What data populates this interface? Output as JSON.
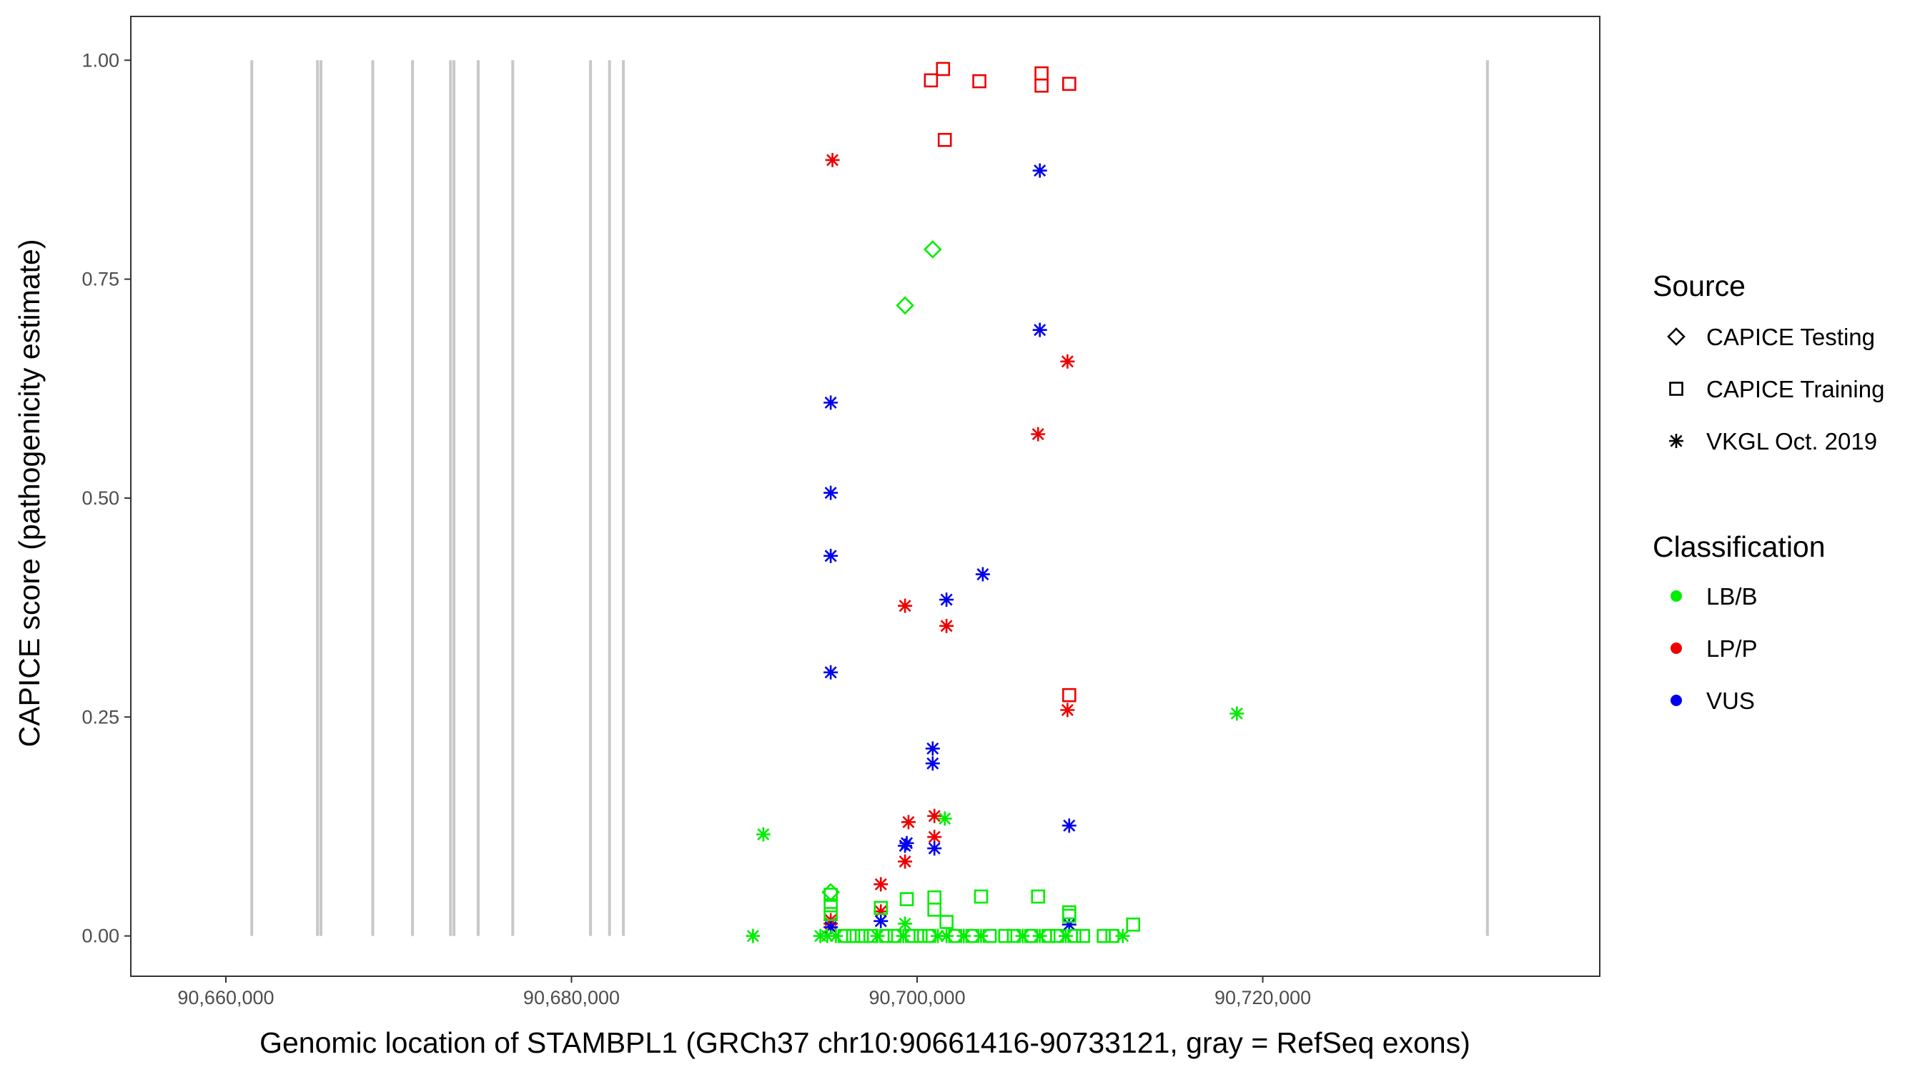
{
  "chart_data": {
    "type": "scatter",
    "xlabel": "Genomic location of STAMBPL1 (GRCh37 chr10:90661416-90733121, gray = RefSeq exons)",
    "ylabel": "CAPICE score (pathogenicity estimate)",
    "xlim": [
      90654500,
      90739500
    ],
    "ylim": [
      -0.046,
      1.05
    ],
    "x_ticks": [
      90660000,
      90680000,
      90700000,
      90720000
    ],
    "x_tick_labels": [
      "90,660,000",
      "90,680,000",
      "90,700,000",
      "90,720,000"
    ],
    "y_ticks": [
      0,
      0.25,
      0.5,
      0.75,
      1.0
    ],
    "y_tick_labels": [
      "0.00",
      "0.25",
      "0.50",
      "0.75",
      "1.00"
    ],
    "grid": false,
    "exons": [
      90661500,
      90665300,
      90665500,
      90668500,
      90670800,
      90673000,
      90673200,
      90674600,
      90676600,
      90681100,
      90682200,
      90683000,
      90733000
    ],
    "colors": {
      "LB/B": "#00ee00",
      "LP/P": "#ee0000",
      "VUS": "#0000ee",
      "exon": "#c8c8c8"
    },
    "legend": {
      "placement": "right",
      "source_title": "Source",
      "source_items": [
        {
          "label": "CAPICE Testing",
          "shape": "diamond"
        },
        {
          "label": "CAPICE Training",
          "shape": "square"
        },
        {
          "label": "VKGL Oct. 2019",
          "shape": "asterisk"
        }
      ],
      "class_title": "Classification",
      "class_items": [
        {
          "label": "LB/B",
          "color": "#00ee00"
        },
        {
          "label": "LP/P",
          "color": "#ee0000"
        },
        {
          "label": "VUS",
          "color": "#0000ee"
        }
      ]
    },
    "points": [
      {
        "x": 90701500,
        "y": 0.99,
        "source": "CAPICE Training",
        "class": "LP/P"
      },
      {
        "x": 90700800,
        "y": 0.977,
        "source": "CAPICE Training",
        "class": "LP/P"
      },
      {
        "x": 90703600,
        "y": 0.976,
        "source": "CAPICE Training",
        "class": "LP/P"
      },
      {
        "x": 90707200,
        "y": 0.985,
        "source": "CAPICE Training",
        "class": "LP/P"
      },
      {
        "x": 90707200,
        "y": 0.971,
        "source": "CAPICE Training",
        "class": "LP/P"
      },
      {
        "x": 90708800,
        "y": 0.973,
        "source": "CAPICE Training",
        "class": "LP/P"
      },
      {
        "x": 90701600,
        "y": 0.909,
        "source": "CAPICE Training",
        "class": "LP/P"
      },
      {
        "x": 90708800,
        "y": 0.275,
        "source": "CAPICE Training",
        "class": "LP/P"
      },
      {
        "x": 90695100,
        "y": 0.886,
        "source": "VKGL Oct. 2019",
        "class": "LP/P"
      },
      {
        "x": 90707100,
        "y": 0.874,
        "source": "VKGL Oct. 2019",
        "class": "VUS"
      },
      {
        "x": 90700900,
        "y": 0.784,
        "source": "CAPICE Testing",
        "class": "LB/B"
      },
      {
        "x": 90699300,
        "y": 0.72,
        "source": "CAPICE Testing",
        "class": "LB/B"
      },
      {
        "x": 90707100,
        "y": 0.692,
        "source": "VKGL Oct. 2019",
        "class": "VUS"
      },
      {
        "x": 90708700,
        "y": 0.656,
        "source": "VKGL Oct. 2019",
        "class": "LP/P"
      },
      {
        "x": 90695000,
        "y": 0.609,
        "source": "VKGL Oct. 2019",
        "class": "VUS"
      },
      {
        "x": 90707000,
        "y": 0.573,
        "source": "VKGL Oct. 2019",
        "class": "LP/P"
      },
      {
        "x": 90695000,
        "y": 0.506,
        "source": "VKGL Oct. 2019",
        "class": "VUS"
      },
      {
        "x": 90695000,
        "y": 0.434,
        "source": "VKGL Oct. 2019",
        "class": "VUS"
      },
      {
        "x": 90703800,
        "y": 0.413,
        "source": "VKGL Oct. 2019",
        "class": "VUS"
      },
      {
        "x": 90701700,
        "y": 0.384,
        "source": "VKGL Oct. 2019",
        "class": "VUS"
      },
      {
        "x": 90699300,
        "y": 0.377,
        "source": "VKGL Oct. 2019",
        "class": "LP/P"
      },
      {
        "x": 90701700,
        "y": 0.354,
        "source": "VKGL Oct. 2019",
        "class": "LP/P"
      },
      {
        "x": 90695000,
        "y": 0.301,
        "source": "VKGL Oct. 2019",
        "class": "VUS"
      },
      {
        "x": 90708700,
        "y": 0.258,
        "source": "VKGL Oct. 2019",
        "class": "LP/P"
      },
      {
        "x": 90718500,
        "y": 0.254,
        "source": "VKGL Oct. 2019",
        "class": "LB/B"
      },
      {
        "x": 90700900,
        "y": 0.214,
        "source": "VKGL Oct. 2019",
        "class": "VUS"
      },
      {
        "x": 90700900,
        "y": 0.197,
        "source": "VKGL Oct. 2019",
        "class": "VUS"
      },
      {
        "x": 90701000,
        "y": 0.137,
        "source": "VKGL Oct. 2019",
        "class": "LP/P"
      },
      {
        "x": 90701600,
        "y": 0.134,
        "source": "VKGL Oct. 2019",
        "class": "LB/B"
      },
      {
        "x": 90699500,
        "y": 0.13,
        "source": "VKGL Oct. 2019",
        "class": "LP/P"
      },
      {
        "x": 90708800,
        "y": 0.126,
        "source": "VKGL Oct. 2019",
        "class": "VUS"
      },
      {
        "x": 90691100,
        "y": 0.116,
        "source": "VKGL Oct. 2019",
        "class": "LB/B"
      },
      {
        "x": 90701000,
        "y": 0.113,
        "source": "VKGL Oct. 2019",
        "class": "LP/P"
      },
      {
        "x": 90699400,
        "y": 0.106,
        "source": "VKGL Oct. 2019",
        "class": "VUS"
      },
      {
        "x": 90699300,
        "y": 0.103,
        "source": "VKGL Oct. 2019",
        "class": "VUS"
      },
      {
        "x": 90701000,
        "y": 0.1,
        "source": "VKGL Oct. 2019",
        "class": "VUS"
      },
      {
        "x": 90699300,
        "y": 0.085,
        "source": "VKGL Oct. 2019",
        "class": "LP/P"
      },
      {
        "x": 90697900,
        "y": 0.059,
        "source": "VKGL Oct. 2019",
        "class": "LP/P"
      },
      {
        "x": 90697900,
        "y": 0.028,
        "source": "VKGL Oct. 2019",
        "class": "LP/P"
      },
      {
        "x": 90697900,
        "y": 0.017,
        "source": "VKGL Oct. 2019",
        "class": "VUS"
      },
      {
        "x": 90695000,
        "y": 0.018,
        "source": "VKGL Oct. 2019",
        "class": "LP/P"
      },
      {
        "x": 90695000,
        "y": 0.014,
        "source": "VKGL Oct. 2019",
        "class": "LP/P"
      },
      {
        "x": 90695000,
        "y": 0.01,
        "source": "VKGL Oct. 2019",
        "class": "VUS"
      },
      {
        "x": 90708800,
        "y": 0.013,
        "source": "VKGL Oct. 2019",
        "class": "VUS"
      },
      {
        "x": 90699300,
        "y": 0.014,
        "source": "VKGL Oct. 2019",
        "class": "LB/B"
      },
      {
        "x": 90690500,
        "y": 0.0,
        "source": "VKGL Oct. 2019",
        "class": "LB/B"
      },
      {
        "x": 90711900,
        "y": 0.0,
        "source": "VKGL Oct. 2019",
        "class": "LB/B"
      },
      {
        "x": 90695000,
        "y": 0.05,
        "source": "CAPICE Testing",
        "class": "LB/B"
      },
      {
        "x": 90695000,
        "y": 0.047,
        "source": "CAPICE Training",
        "class": "LB/B"
      },
      {
        "x": 90695000,
        "y": 0.035,
        "source": "CAPICE Training",
        "class": "LB/B"
      },
      {
        "x": 90695000,
        "y": 0.025,
        "source": "CAPICE Training",
        "class": "LB/B"
      },
      {
        "x": 90697900,
        "y": 0.032,
        "source": "CAPICE Training",
        "class": "LB/B"
      },
      {
        "x": 90699400,
        "y": 0.042,
        "source": "CAPICE Training",
        "class": "LB/B"
      },
      {
        "x": 90701000,
        "y": 0.044,
        "source": "CAPICE Training",
        "class": "LB/B"
      },
      {
        "x": 90701000,
        "y": 0.03,
        "source": "CAPICE Training",
        "class": "LB/B"
      },
      {
        "x": 90703700,
        "y": 0.045,
        "source": "CAPICE Training",
        "class": "LB/B"
      },
      {
        "x": 90707000,
        "y": 0.045,
        "source": "CAPICE Training",
        "class": "LB/B"
      },
      {
        "x": 90708800,
        "y": 0.027,
        "source": "CAPICE Training",
        "class": "LB/B"
      },
      {
        "x": 90708800,
        "y": 0.023,
        "source": "CAPICE Training",
        "class": "LB/B"
      },
      {
        "x": 90701700,
        "y": 0.016,
        "source": "CAPICE Training",
        "class": "LB/B"
      },
      {
        "x": 90712500,
        "y": 0.013,
        "source": "CAPICE Training",
        "class": "LB/B"
      },
      {
        "x": 90694400,
        "y": 0.0,
        "source": "VKGL Oct. 2019",
        "class": "LB/B"
      },
      {
        "x": 90694800,
        "y": 0.0,
        "source": "VKGL Oct. 2019",
        "class": "LB/B"
      },
      {
        "x": 90695300,
        "y": 0.0,
        "source": "VKGL Oct. 2019",
        "class": "LB/B"
      },
      {
        "x": 90695800,
        "y": 0.0,
        "source": "CAPICE Training",
        "class": "LB/B"
      },
      {
        "x": 90696300,
        "y": 0.0,
        "source": "CAPICE Training",
        "class": "LB/B"
      },
      {
        "x": 90696800,
        "y": 0.0,
        "source": "CAPICE Training",
        "class": "LB/B"
      },
      {
        "x": 90697300,
        "y": 0.0,
        "source": "CAPICE Training",
        "class": "LB/B"
      },
      {
        "x": 90697700,
        "y": 0.0,
        "source": "VKGL Oct. 2019",
        "class": "LB/B"
      },
      {
        "x": 90698200,
        "y": 0.0,
        "source": "CAPICE Training",
        "class": "LB/B"
      },
      {
        "x": 90698700,
        "y": 0.0,
        "source": "CAPICE Training",
        "class": "LB/B"
      },
      {
        "x": 90699200,
        "y": 0.0,
        "source": "VKGL Oct. 2019",
        "class": "LB/B"
      },
      {
        "x": 90699700,
        "y": 0.0,
        "source": "CAPICE Training",
        "class": "LB/B"
      },
      {
        "x": 90700200,
        "y": 0.0,
        "source": "CAPICE Training",
        "class": "LB/B"
      },
      {
        "x": 90700700,
        "y": 0.0,
        "source": "CAPICE Training",
        "class": "LB/B"
      },
      {
        "x": 90701200,
        "y": 0.0,
        "source": "VKGL Oct. 2019",
        "class": "LB/B"
      },
      {
        "x": 90701700,
        "y": 0.0,
        "source": "VKGL Oct. 2019",
        "class": "LB/B"
      },
      {
        "x": 90702200,
        "y": 0.0,
        "source": "CAPICE Training",
        "class": "LB/B"
      },
      {
        "x": 90702700,
        "y": 0.0,
        "source": "VKGL Oct. 2019",
        "class": "LB/B"
      },
      {
        "x": 90703200,
        "y": 0.0,
        "source": "CAPICE Training",
        "class": "LB/B"
      },
      {
        "x": 90703700,
        "y": 0.0,
        "source": "VKGL Oct. 2019",
        "class": "LB/B"
      },
      {
        "x": 90704200,
        "y": 0.0,
        "source": "CAPICE Training",
        "class": "LB/B"
      },
      {
        "x": 90705100,
        "y": 0.0,
        "source": "CAPICE Training",
        "class": "LB/B"
      },
      {
        "x": 90705600,
        "y": 0.0,
        "source": "CAPICE Training",
        "class": "LB/B"
      },
      {
        "x": 90706100,
        "y": 0.0,
        "source": "VKGL Oct. 2019",
        "class": "LB/B"
      },
      {
        "x": 90706600,
        "y": 0.0,
        "source": "CAPICE Training",
        "class": "LB/B"
      },
      {
        "x": 90707100,
        "y": 0.0,
        "source": "VKGL Oct. 2019",
        "class": "LB/B"
      },
      {
        "x": 90707600,
        "y": 0.0,
        "source": "CAPICE Training",
        "class": "LB/B"
      },
      {
        "x": 90708100,
        "y": 0.0,
        "source": "CAPICE Training",
        "class": "LB/B"
      },
      {
        "x": 90708600,
        "y": 0.0,
        "source": "VKGL Oct. 2019",
        "class": "LB/B"
      },
      {
        "x": 90709100,
        "y": 0.0,
        "source": "CAPICE Training",
        "class": "LB/B"
      },
      {
        "x": 90709600,
        "y": 0.0,
        "source": "CAPICE Training",
        "class": "LB/B"
      },
      {
        "x": 90710800,
        "y": 0.0,
        "source": "CAPICE Training",
        "class": "LB/B"
      },
      {
        "x": 90711300,
        "y": 0.0,
        "source": "CAPICE Training",
        "class": "LB/B"
      }
    ]
  }
}
